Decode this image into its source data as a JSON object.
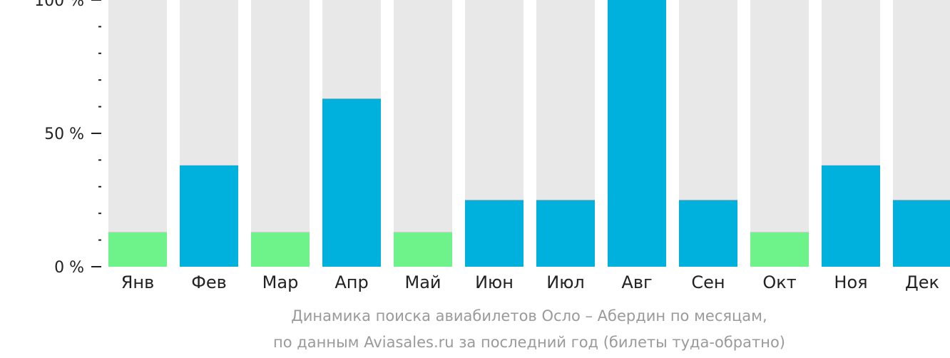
{
  "chart_data": {
    "type": "bar",
    "categories": [
      "Янв",
      "Фев",
      "Мар",
      "Апр",
      "Май",
      "Июн",
      "Июл",
      "Авг",
      "Сен",
      "Окт",
      "Ноя",
      "Дек"
    ],
    "values": [
      13,
      38,
      13,
      63,
      13,
      25,
      25,
      100,
      25,
      13,
      38,
      25
    ],
    "ylim": [
      0,
      100
    ],
    "yticks": [
      {
        "value": 100,
        "label": "100 %"
      },
      {
        "value": 50,
        "label": "50 %"
      },
      {
        "value": 0,
        "label": "0 %"
      }
    ],
    "minor_tick_step": 10,
    "caption_lines": [
      "Динамика поиска авиабилетов Осло – Абердин по месяцам,",
      "по данным Aviasales.ru за последний год (билеты туда-обратно)"
    ],
    "colors": {
      "background_bar": "#e8e8e8",
      "bar_high": "#00b0dd",
      "bar_low": "#6ef28a",
      "axis": "#222222",
      "caption": "#9a9a9a"
    },
    "low_threshold": 15
  }
}
